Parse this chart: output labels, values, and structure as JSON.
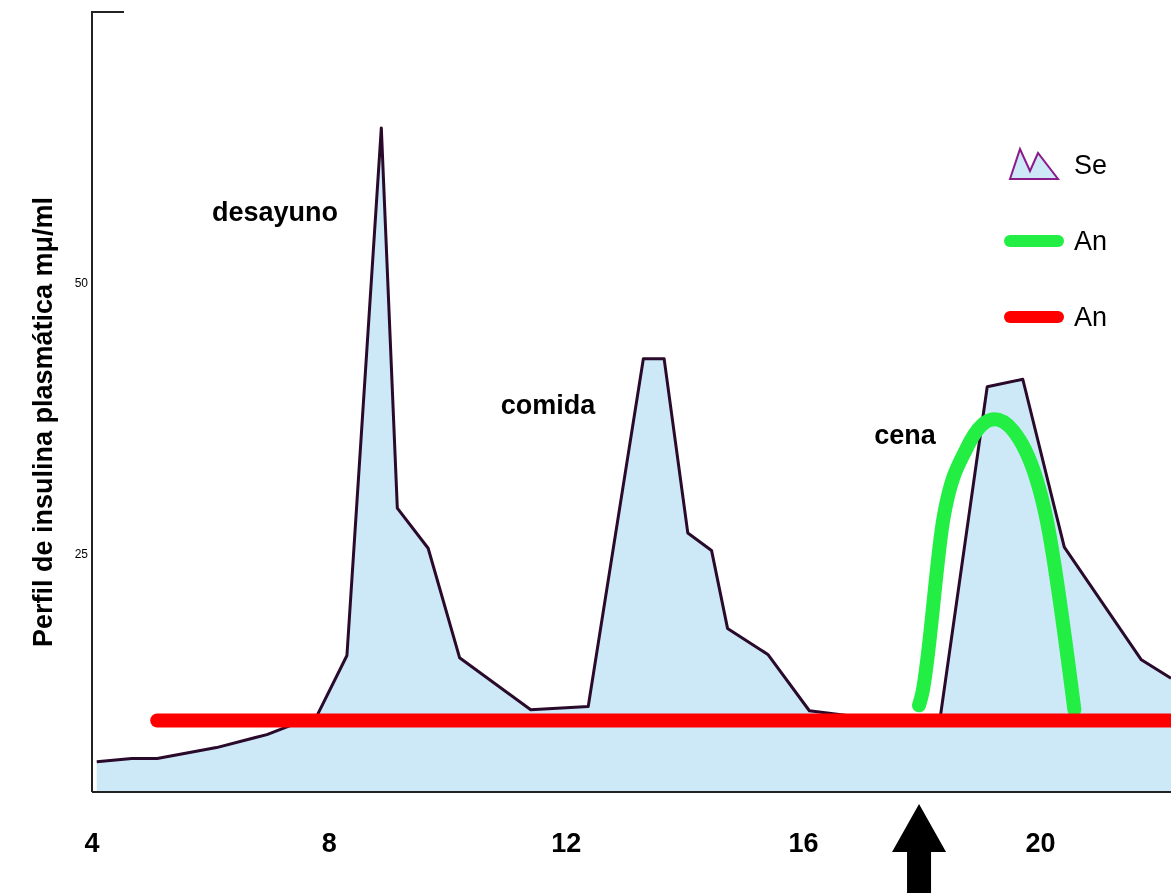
{
  "chart_data": {
    "type": "area",
    "ylabel": "Perfil de insulina plasmática mμ/ml",
    "xlim": [
      4,
      22.2
    ],
    "xticks": [
      4,
      8,
      12,
      16,
      20
    ],
    "ylim": [
      3,
      75
    ],
    "yticks": [
      25,
      50
    ],
    "grid": false,
    "legend": "top right",
    "series": [
      {
        "name": "Se",
        "color": "#cde9f8",
        "x": [
          4.08,
          4.67,
          5.1,
          6.1,
          6.95,
          7.8,
          8.3,
          8.88,
          9.15,
          9.67,
          10.2,
          11.4,
          12.37,
          13.3,
          13.65,
          14.05,
          14.45,
          14.72,
          15.4,
          16.1,
          17.4,
          18.3,
          19.1,
          19.7,
          20.4,
          21.7,
          22.2
        ],
        "values": [
          5.8,
          6.1,
          6.1,
          7.1,
          8.3,
          10.1,
          15.6,
          64.3,
          29.2,
          25.5,
          15.4,
          10.6,
          10.9,
          43.0,
          43.0,
          26.9,
          25.3,
          18.1,
          15.7,
          10.5,
          9.6,
          9.6,
          40.4,
          41.1,
          25.6,
          15.2,
          13.5
        ]
      },
      {
        "name": "An",
        "type": "line",
        "color": "#22ee44",
        "x": [
          17.95,
          18.0,
          18.36,
          18.76,
          19.22,
          19.69,
          20.1,
          20.57
        ],
        "values": [
          11.0,
          12.0,
          28.2,
          34.8,
          37.4,
          35.1,
          28.2,
          10.6
        ]
      },
      {
        "name": "An",
        "type": "line",
        "color": "#ff0000",
        "x": [
          5.1,
          22.2
        ],
        "values": [
          9.6,
          9.6
        ]
      }
    ],
    "annotations": [
      "desayuno",
      "comida",
      "cena"
    ]
  }
}
